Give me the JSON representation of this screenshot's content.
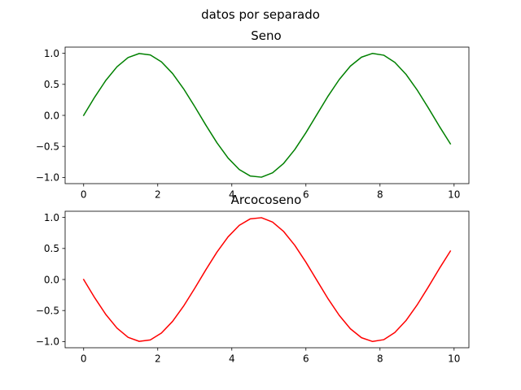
{
  "figure": {
    "suptitle": "datos por separado"
  },
  "chart_data": [
    {
      "type": "line",
      "title": "Seno",
      "xlabel": "",
      "ylabel": "",
      "xlim": [
        -0.5,
        10.4
      ],
      "ylim": [
        -1.1,
        1.1
      ],
      "xticks": [
        0,
        2,
        4,
        6,
        8,
        10
      ],
      "yticks": [
        -1.0,
        -0.5,
        0.0,
        0.5,
        1.0
      ],
      "xtick_labels": [
        "0",
        "2",
        "4",
        "6",
        "8",
        "10"
      ],
      "ytick_labels": [
        "−1.0",
        "−0.5",
        "0.0",
        "0.5",
        "1.0"
      ],
      "grid": false,
      "legend": "none",
      "series": [
        {
          "color": "#008000",
          "x": [
            0.0,
            0.3,
            0.6,
            0.9,
            1.2,
            1.5,
            1.8,
            2.1,
            2.4,
            2.7,
            3.0,
            3.3,
            3.6,
            3.9,
            4.2,
            4.5,
            4.8,
            5.1,
            5.4,
            5.7,
            6.0,
            6.3,
            6.6,
            6.9,
            7.2,
            7.5,
            7.8,
            8.1,
            8.4,
            8.7,
            9.0,
            9.3,
            9.6,
            9.9
          ],
          "y": [
            0.0,
            0.296,
            0.565,
            0.783,
            0.932,
            0.997,
            0.974,
            0.863,
            0.675,
            0.427,
            0.141,
            -0.158,
            -0.443,
            -0.688,
            -0.872,
            -0.978,
            -0.996,
            -0.926,
            -0.773,
            -0.551,
            -0.279,
            0.017,
            0.312,
            0.578,
            0.794,
            0.938,
            0.999,
            0.97,
            0.855,
            0.663,
            0.412,
            0.125,
            -0.174,
            -0.458
          ]
        }
      ]
    },
    {
      "type": "line",
      "title": "Arcocoseno",
      "xlabel": "",
      "ylabel": "",
      "xlim": [
        -0.5,
        10.4
      ],
      "ylim": [
        -1.1,
        1.1
      ],
      "xticks": [
        0,
        2,
        4,
        6,
        8,
        10
      ],
      "yticks": [
        -1.0,
        -0.5,
        0.0,
        0.5,
        1.0
      ],
      "xtick_labels": [
        "0",
        "2",
        "4",
        "6",
        "8",
        "10"
      ],
      "ytick_labels": [
        "−1.0",
        "−0.5",
        "0.0",
        "0.5",
        "1.0"
      ],
      "grid": false,
      "legend": "none",
      "series": [
        {
          "color": "#ff0000",
          "x": [
            0.0,
            0.3,
            0.6,
            0.9,
            1.2,
            1.5,
            1.8,
            2.1,
            2.4,
            2.7,
            3.0,
            3.3,
            3.6,
            3.9,
            4.2,
            4.5,
            4.8,
            5.1,
            5.4,
            5.7,
            6.0,
            6.3,
            6.6,
            6.9,
            7.2,
            7.5,
            7.8,
            8.1,
            8.4,
            8.7,
            9.0,
            9.3,
            9.6,
            9.9
          ],
          "y": [
            0.0,
            -0.296,
            -0.565,
            -0.783,
            -0.932,
            -0.997,
            -0.974,
            -0.863,
            -0.675,
            -0.427,
            -0.141,
            0.158,
            0.443,
            0.688,
            0.872,
            0.978,
            0.996,
            0.926,
            0.773,
            0.551,
            0.279,
            -0.017,
            -0.312,
            -0.578,
            -0.794,
            -0.938,
            -0.999,
            -0.97,
            -0.855,
            -0.663,
            -0.412,
            -0.125,
            0.174,
            0.458
          ]
        }
      ]
    }
  ]
}
